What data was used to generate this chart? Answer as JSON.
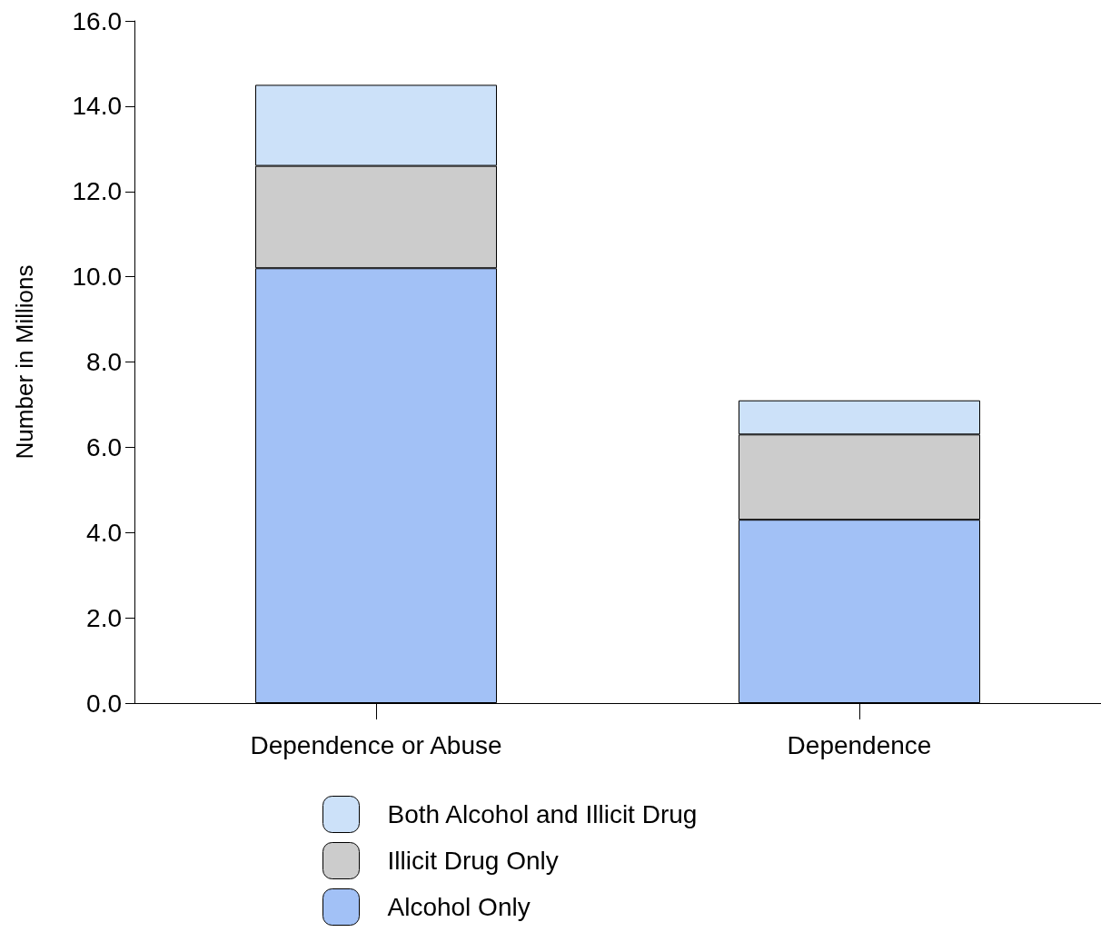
{
  "chart_data": {
    "type": "bar",
    "ylabel": "Number in Millions",
    "categories": [
      "Dependence or Abuse",
      "Dependence"
    ],
    "stacked": true,
    "series": [
      {
        "name": "Alcohol Only",
        "color": "#a2c1f6",
        "values": [
          10.2,
          4.3
        ]
      },
      {
        "name": "Illicit Drug Only",
        "color": "#cccccc",
        "values": [
          2.4,
          2.0
        ]
      },
      {
        "name": "Both Alcohol and Illicit Drug",
        "color": "#cce1f9",
        "values": [
          1.9,
          0.8
        ]
      }
    ],
    "ylim": [
      0,
      16
    ],
    "yticks": [
      {
        "value": 0,
        "label": "0.0"
      },
      {
        "value": 2,
        "label": "2.0"
      },
      {
        "value": 4,
        "label": "4.0"
      },
      {
        "value": 6,
        "label": "6.0"
      },
      {
        "value": 8,
        "label": "8.0"
      },
      {
        "value": 10,
        "label": "10.0"
      },
      {
        "value": 12,
        "label": "12.0"
      },
      {
        "value": 14,
        "label": "14.0"
      },
      {
        "value": 16,
        "label": "16.0"
      }
    ],
    "grid": false,
    "legend": "bottom"
  }
}
